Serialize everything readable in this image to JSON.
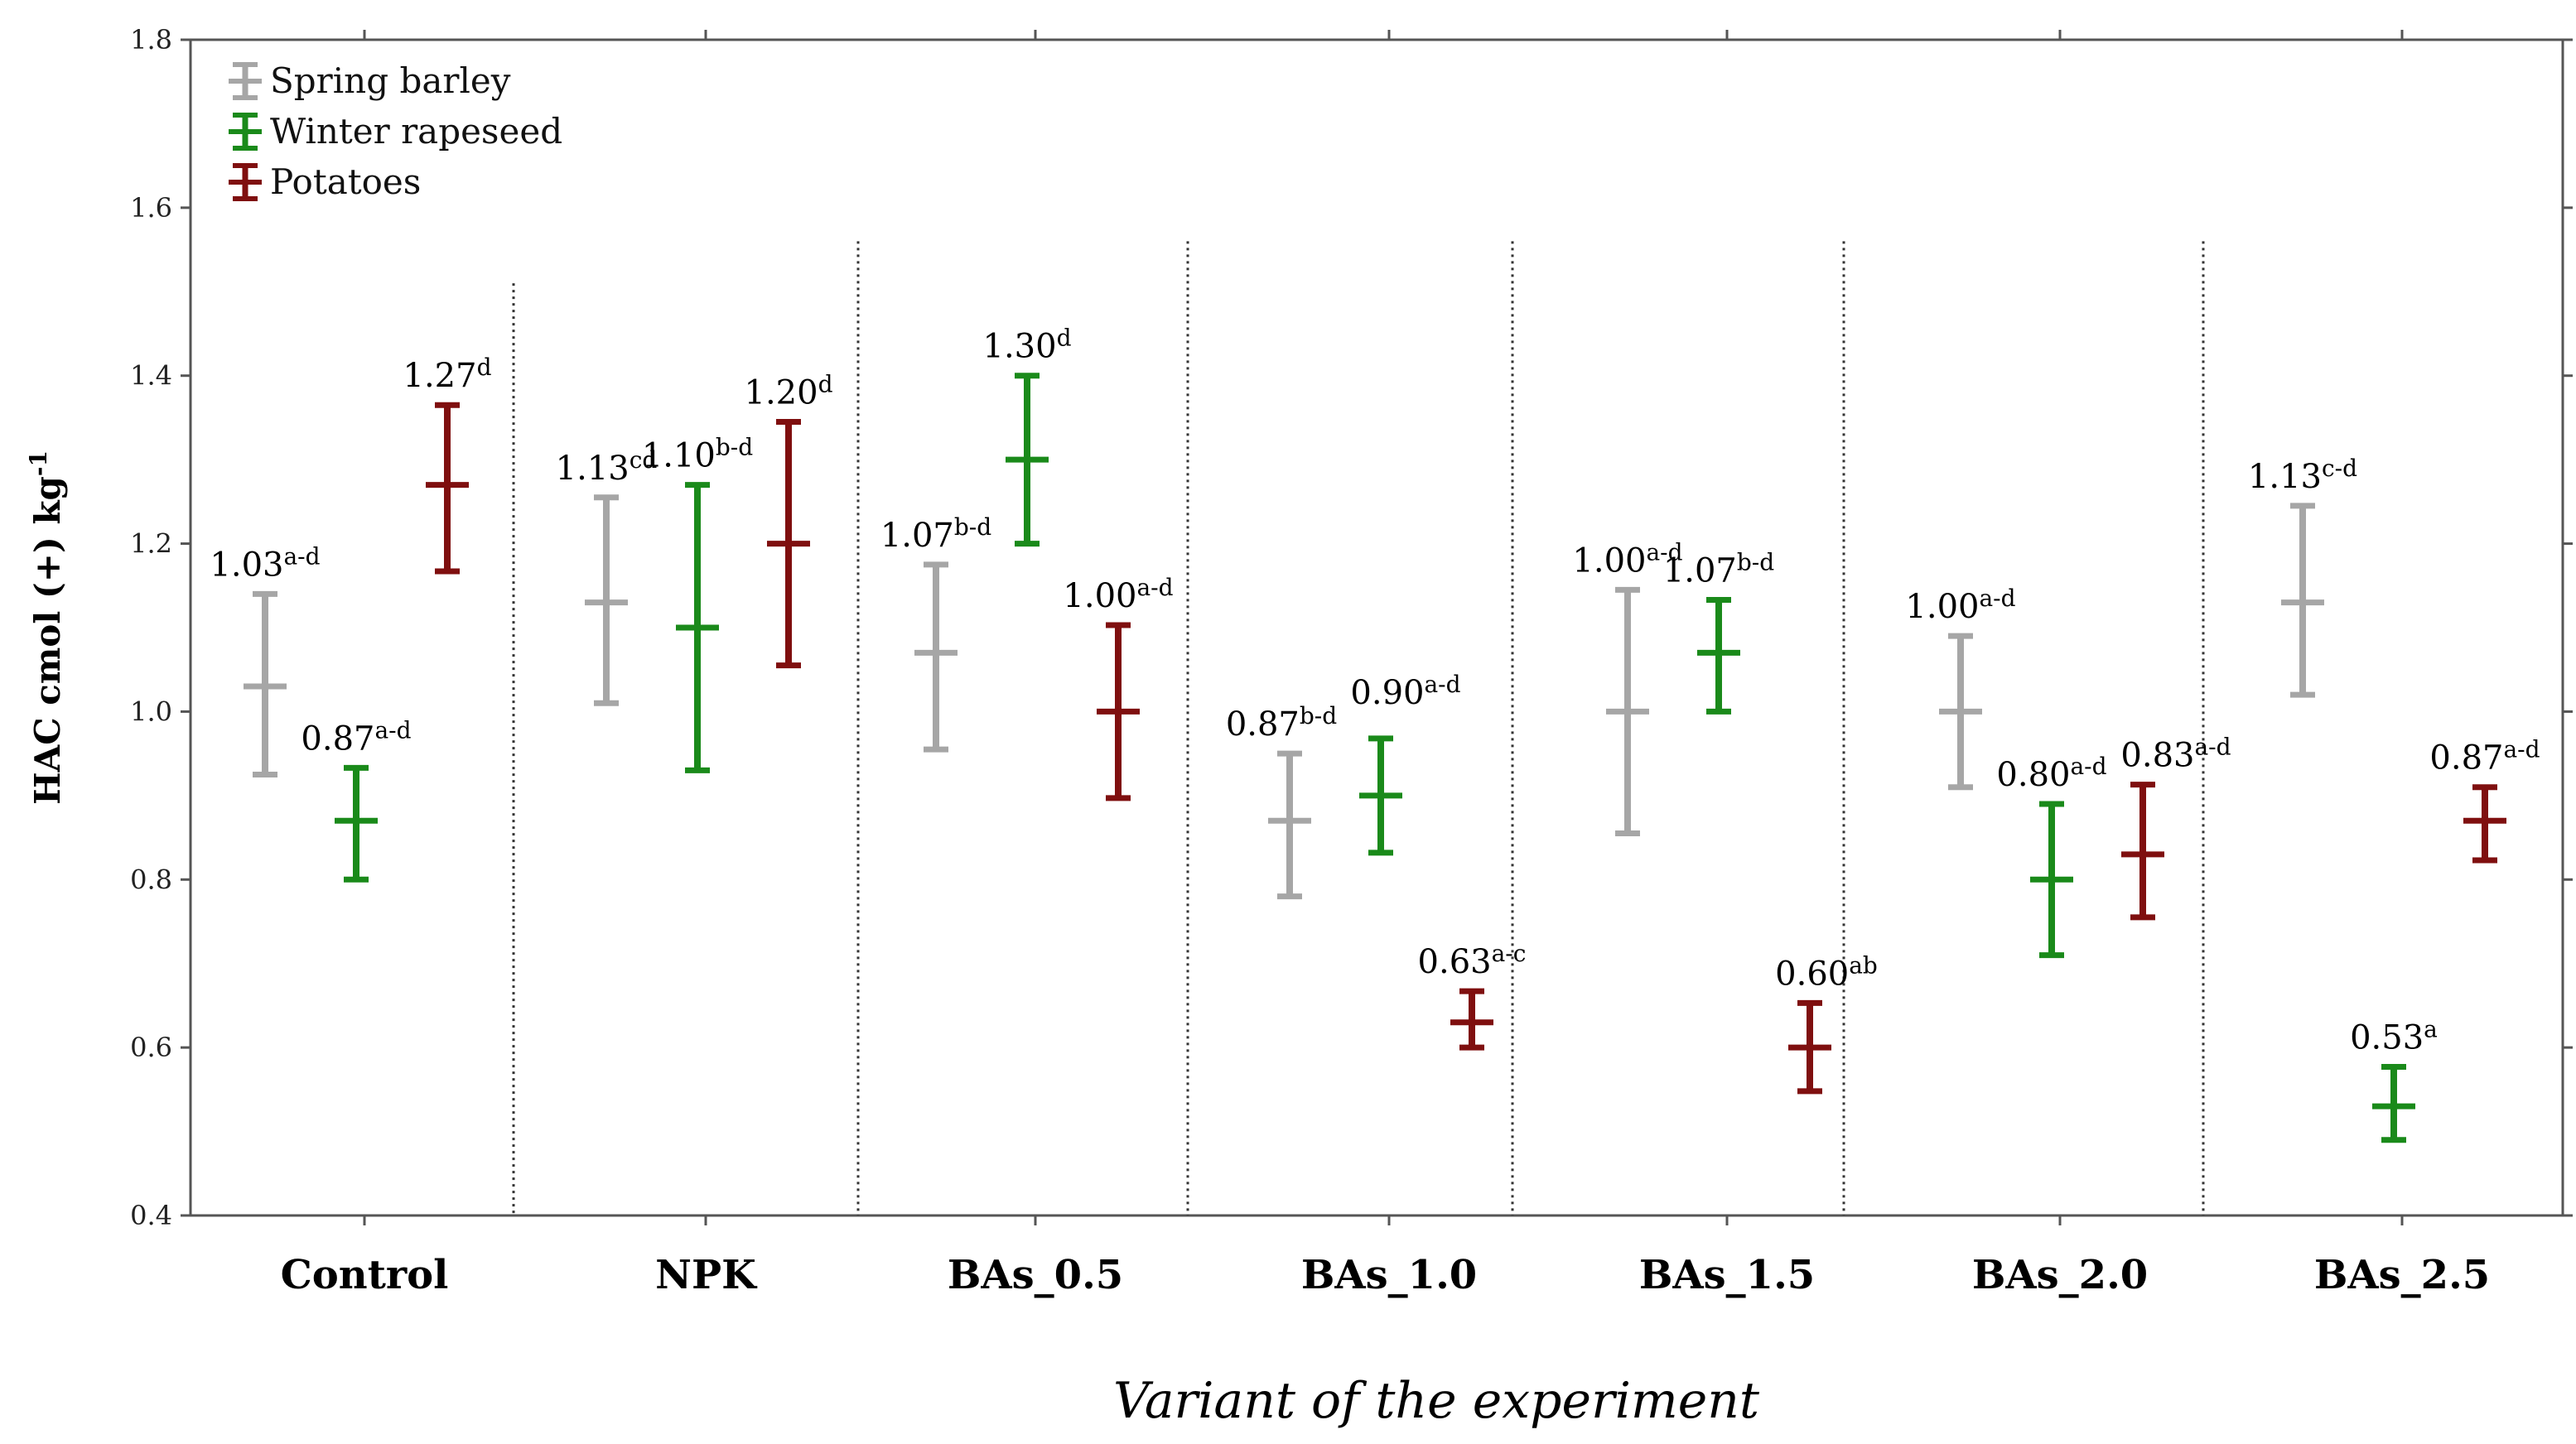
{
  "chart_data": {
    "type": "errorbar",
    "title": "",
    "xlabel": "Variant of the experiment",
    "ylabel": "HAC cmol (+) kg",
    "ylabel_sup": "-1",
    "ylim": [
      0.4,
      1.8
    ],
    "yticks": [
      "0.4",
      "0.6",
      "0.8",
      "1.0",
      "1.2",
      "1.4",
      "1.6",
      "1.8"
    ],
    "legend_position": "top-left",
    "categories": [
      "Control",
      "NPK",
      "BAs_0.5",
      "BAs_1.0",
      "BAs_1.5",
      "BAs_2.0",
      "BAs_2.5"
    ],
    "series": [
      {
        "name": "Spring barley",
        "color": "#a6a6a6",
        "means": [
          1.03,
          1.13,
          1.07,
          0.87,
          1.0,
          1.0,
          1.13
        ],
        "lower": [
          0.925,
          1.01,
          0.955,
          0.78,
          0.855,
          0.91,
          1.02
        ],
        "upper": [
          1.14,
          1.255,
          1.175,
          0.95,
          1.145,
          1.09,
          1.245
        ],
        "labels": [
          "1.03",
          "1.13",
          "1.07",
          "0.87",
          "1.00",
          "1.00",
          "1.13"
        ],
        "letters": [
          "a-d",
          "cd",
          "b-d",
          "b-d",
          "a-d",
          "a-d",
          "c-d"
        ]
      },
      {
        "name": "Winter rapeseed",
        "color": "#1a8a1a",
        "means": [
          0.87,
          1.1,
          1.3,
          0.9,
          1.07,
          0.8,
          0.53
        ],
        "lower": [
          0.8,
          0.93,
          1.2,
          0.832,
          1.0,
          0.71,
          0.49
        ],
        "upper": [
          0.933,
          1.27,
          1.4,
          0.968,
          1.133,
          0.89,
          0.577
        ],
        "labels": [
          "0.87",
          "1.10",
          "1.30",
          "0.90",
          "1.07",
          "0.80",
          "0.53"
        ],
        "letters": [
          "a-d",
          "b-d",
          "d",
          "a-d",
          "b-d",
          "a-d",
          "a"
        ]
      },
      {
        "name": "Potatoes",
        "color": "#7f0f0f",
        "means": [
          1.27,
          1.2,
          1.0,
          0.63,
          0.6,
          0.83,
          0.87
        ],
        "lower": [
          1.167,
          1.055,
          0.897,
          0.6,
          0.548,
          0.755,
          0.823
        ],
        "upper": [
          1.365,
          1.345,
          1.103,
          0.667,
          0.653,
          0.913,
          0.91
        ],
        "labels": [
          "1.27",
          "1.20",
          "1.00",
          "0.63",
          "0.60",
          "0.83",
          "0.87"
        ],
        "letters": [
          "d",
          "d",
          "a-d",
          "a-c",
          "ab",
          "a-d",
          "a-d"
        ]
      }
    ]
  }
}
